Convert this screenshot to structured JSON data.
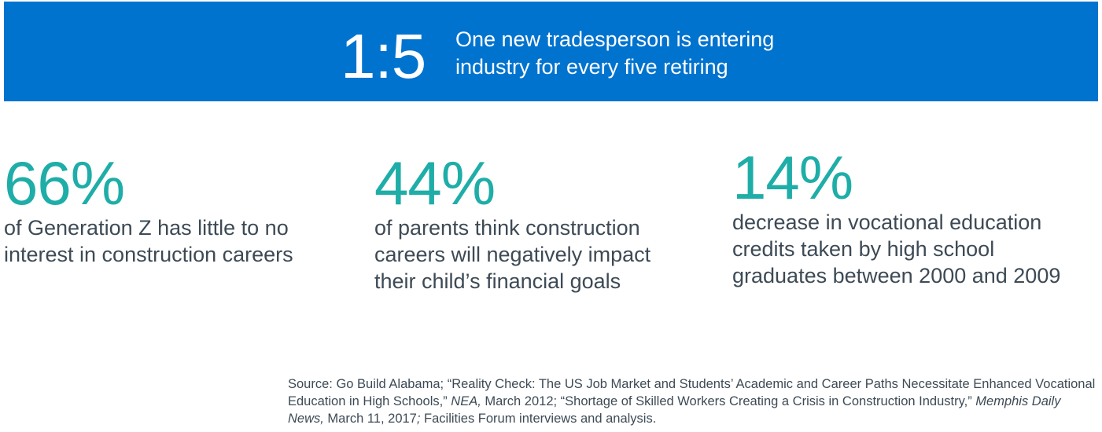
{
  "banner": {
    "ratio": "1:5",
    "text_line1": "One new tradesperson is entering",
    "text_line2": "industry for every five retiring",
    "color": "#0073cf"
  },
  "stats": [
    {
      "percent": "66%",
      "line1": "of Generation Z has little to no",
      "line2": "interest in construction careers",
      "line3": ""
    },
    {
      "percent": "44%",
      "line1": "of parents think construction",
      "line2": "careers will negatively impact",
      "line3": "their child’s financial goals"
    },
    {
      "percent": "14%",
      "line1": "decrease in vocational education",
      "line2": "credits taken by high school",
      "line3": "graduates between 2000 and 2009"
    }
  ],
  "accent_color": "#1fada8",
  "source": {
    "part1": "Source: Go Build Alabama; “Reality Check: The US Job Market and Students’ Academic and Career Paths Necessitate Enhanced Vocational Education in High Schools,” ",
    "italic1": "NEA,",
    "part2": " March 2012; “Shortage of Skilled Workers Creating a Crisis in Construction Industry,” ",
    "italic2": "Memphis Daily News,",
    "part3": " March 11, 2017",
    "italic3": ";",
    "part4": " Facilities Forum interviews and analysis."
  }
}
